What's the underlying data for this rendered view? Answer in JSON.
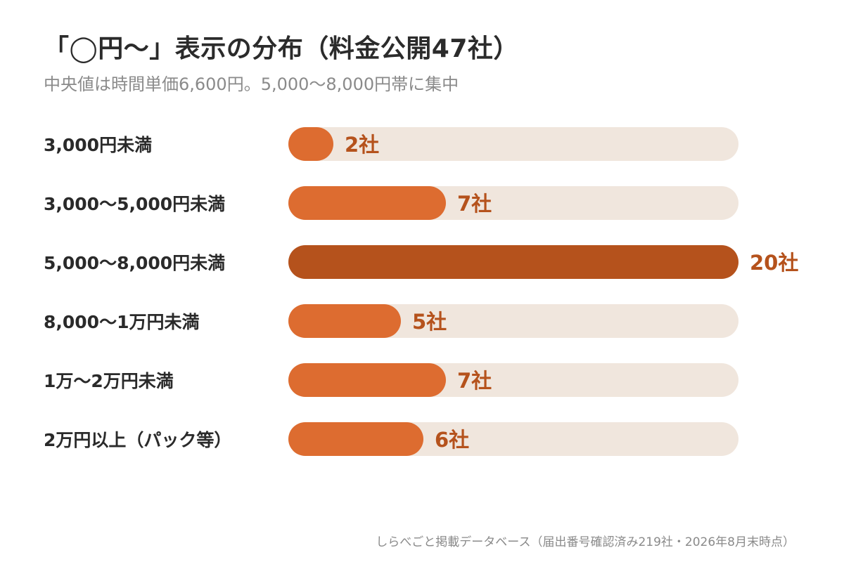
{
  "title": "「◯円〜」表示の分布（料金公開47社）",
  "subtitle": "中央値は時間単価6,600円。5,000〜8,000円帯に集中",
  "footer": "しらべごと掲載データベース（届出番号確認済み219社・2026年8月末時点）",
  "colors": {
    "bar": "#dd6c30",
    "bar_highlight": "#b5521c",
    "track": "#f0e6dd",
    "value_text": "#b5521c",
    "label_text": "#2a2a2a"
  },
  "chart_data": {
    "type": "bar",
    "orientation": "horizontal",
    "title": "「◯円〜」表示の分布（料金公開47社）",
    "subtitle": "中央値は時間単価6,600円。5,000〜8,000円帯に集中",
    "categories": [
      "3,000円未満",
      "3,000〜5,000円未満",
      "5,000〜8,000円未満",
      "8,000〜1万円未満",
      "1万〜2万円未満",
      "2万円以上（パック等）"
    ],
    "values": [
      2,
      7,
      20,
      5,
      7,
      6
    ],
    "value_labels": [
      "2社",
      "7社",
      "20社",
      "5社",
      "7社",
      "6社"
    ],
    "highlight_index": 2,
    "xlim": [
      0,
      20
    ],
    "grid": false,
    "legend": "none"
  }
}
